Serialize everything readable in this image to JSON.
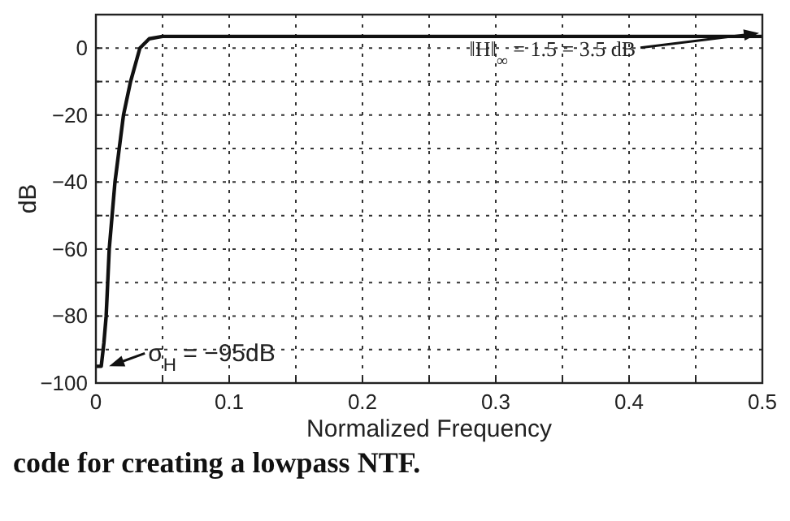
{
  "chart_data": {
    "type": "line",
    "xlabel": "Normalized Frequency",
    "ylabel": "dB",
    "x": [
      0,
      0.004,
      0.006,
      0.0077,
      0.01,
      0.0143,
      0.0207,
      0.026,
      0.033,
      0.04,
      0.05,
      0.5
    ],
    "series": [
      {
        "color": "#111111",
        "values": [
          -95,
          -95,
          -88,
          -80,
          -60,
          -40,
          -20,
          -10,
          0,
          2.8,
          3.5,
          3.5
        ]
      }
    ],
    "xlim": [
      0,
      0.5
    ],
    "ylim": [
      -100,
      10
    ],
    "xticks": [
      0,
      {
        "value": 0.05,
        "label": null
      },
      0.1,
      {
        "value": 0.15,
        "label": null
      },
      0.2,
      {
        "value": 0.25,
        "label": null
      },
      0.3,
      {
        "value": 0.35,
        "label": null
      },
      0.4,
      {
        "value": 0.45,
        "label": null
      },
      0.5
    ],
    "yticks": [
      -100,
      {
        "value": -90,
        "label": null
      },
      -80,
      {
        "value": -70,
        "label": null
      },
      -60,
      {
        "value": -50,
        "label": null
      },
      -40,
      {
        "value": -30,
        "label": null
      },
      -20,
      {
        "value": -10,
        "label": null
      },
      0,
      {
        "value": 10,
        "label": null
      }
    ],
    "grid": true,
    "marker": "none",
    "line_style": "solid",
    "annotations": [
      {
        "text": "σ$_{H}$ = −95dB",
        "x": 0.005,
        "y": -95
      },
      {
        "text": "‖H‖$_{∞}$ = 1.5 = 3.5 dB",
        "x": 0.5,
        "y": 3.5
      },
      "code for creating a lowpass NTF."
    ]
  }
}
